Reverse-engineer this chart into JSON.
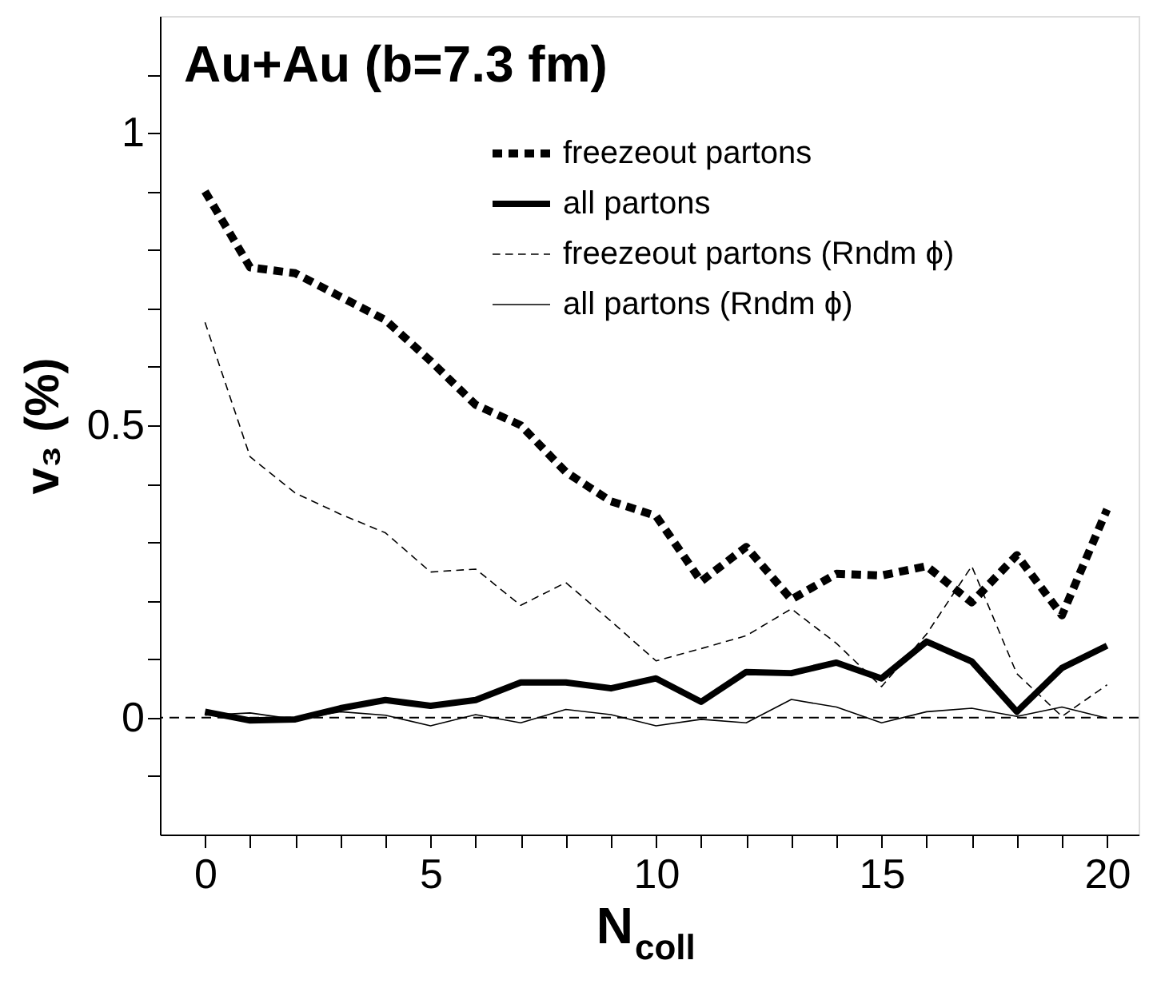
{
  "chart_data": {
    "type": "line",
    "title": "Au+Au (b=7.3 fm)",
    "xlabel": "N$_{coll}$",
    "ylabel": "v₃ (%)",
    "x": [
      0,
      1,
      2,
      3,
      4,
      5,
      6,
      7,
      8,
      9,
      10,
      11,
      12,
      13,
      14,
      15,
      16,
      17,
      18,
      19,
      20
    ],
    "series": [
      {
        "name": "freezeout partons",
        "color": "#000000",
        "line_style": "dashed",
        "values": [
          0.9,
          0.77,
          0.76,
          0.72,
          0.68,
          0.61,
          0.535,
          0.5,
          0.42,
          0.37,
          0.345,
          0.233,
          0.292,
          0.202,
          0.246,
          0.243,
          0.259,
          0.197,
          0.278,
          0.175,
          0.356
        ]
      },
      {
        "name": "all partons",
        "color": "#000000",
        "line_style": "solid",
        "values": [
          0.01,
          -0.005,
          -0.003,
          0.016,
          0.03,
          0.02,
          0.03,
          0.06,
          0.06,
          0.05,
          0.067,
          0.027,
          0.078,
          0.076,
          0.094,
          0.067,
          0.13,
          0.096,
          0.01,
          0.085,
          0.123
        ]
      },
      {
        "name": "freezeout partons (Rndm ϕ)",
        "color": "#000000",
        "line_style": "dashed",
        "values": [
          0.676,
          0.446,
          0.384,
          0.348,
          0.316,
          0.249,
          0.254,
          0.192,
          0.231,
          0.165,
          0.097,
          0.118,
          0.14,
          0.186,
          0.127,
          0.053,
          0.143,
          0.259,
          0.075,
          0.002,
          0.056
        ]
      },
      {
        "name": "all partons (Rndm ϕ)",
        "color": "#000000",
        "line_style": "solid",
        "values": [
          0.004,
          0.008,
          -0.003,
          0.01,
          0.004,
          -0.014,
          0.005,
          -0.009,
          0.014,
          0.005,
          -0.014,
          -0.003,
          -0.009,
          0.031,
          0.018,
          -0.009,
          0.01,
          0.016,
          0.002,
          0.018,
          -0.001
        ]
      }
    ],
    "xlim": [
      -1,
      20.7
    ],
    "ylim": [
      -0.2,
      1.2
    ],
    "xticks": [
      0,
      {
        "value": 1,
        "label": null
      },
      {
        "value": 2,
        "label": null
      },
      {
        "value": 3,
        "label": null
      },
      {
        "value": 4,
        "label": null
      },
      5,
      {
        "value": 6,
        "label": null
      },
      {
        "value": 7,
        "label": null
      },
      {
        "value": 8,
        "label": null
      },
      {
        "value": 9,
        "label": null
      },
      10,
      {
        "value": 11,
        "label": null
      },
      {
        "value": 12,
        "label": null
      },
      {
        "value": 13,
        "label": null
      },
      {
        "value": 14,
        "label": null
      },
      15,
      {
        "value": 16,
        "label": null
      },
      {
        "value": 17,
        "label": null
      },
      {
        "value": 18,
        "label": null
      },
      {
        "value": 19,
        "label": null
      },
      20
    ],
    "yticks": [
      {
        "value": -0.1,
        "label": null
      },
      0,
      {
        "value": 0.1,
        "label": null
      },
      {
        "value": 0.2,
        "label": null
      },
      {
        "value": 0.3,
        "label": null
      },
      {
        "value": 0.4,
        "label": null
      },
      0.5,
      {
        "value": 0.6,
        "label": null
      },
      {
        "value": 0.7,
        "label": null
      },
      {
        "value": 0.8,
        "label": null
      },
      {
        "value": 0.9,
        "label": null
      },
      1,
      {
        "value": 1.1,
        "label": null
      }
    ],
    "ref_lines": [
      {
        "axis": "y",
        "value": 0,
        "line_style": "dashed"
      }
    ],
    "legend": "top right",
    "grid": false
  }
}
